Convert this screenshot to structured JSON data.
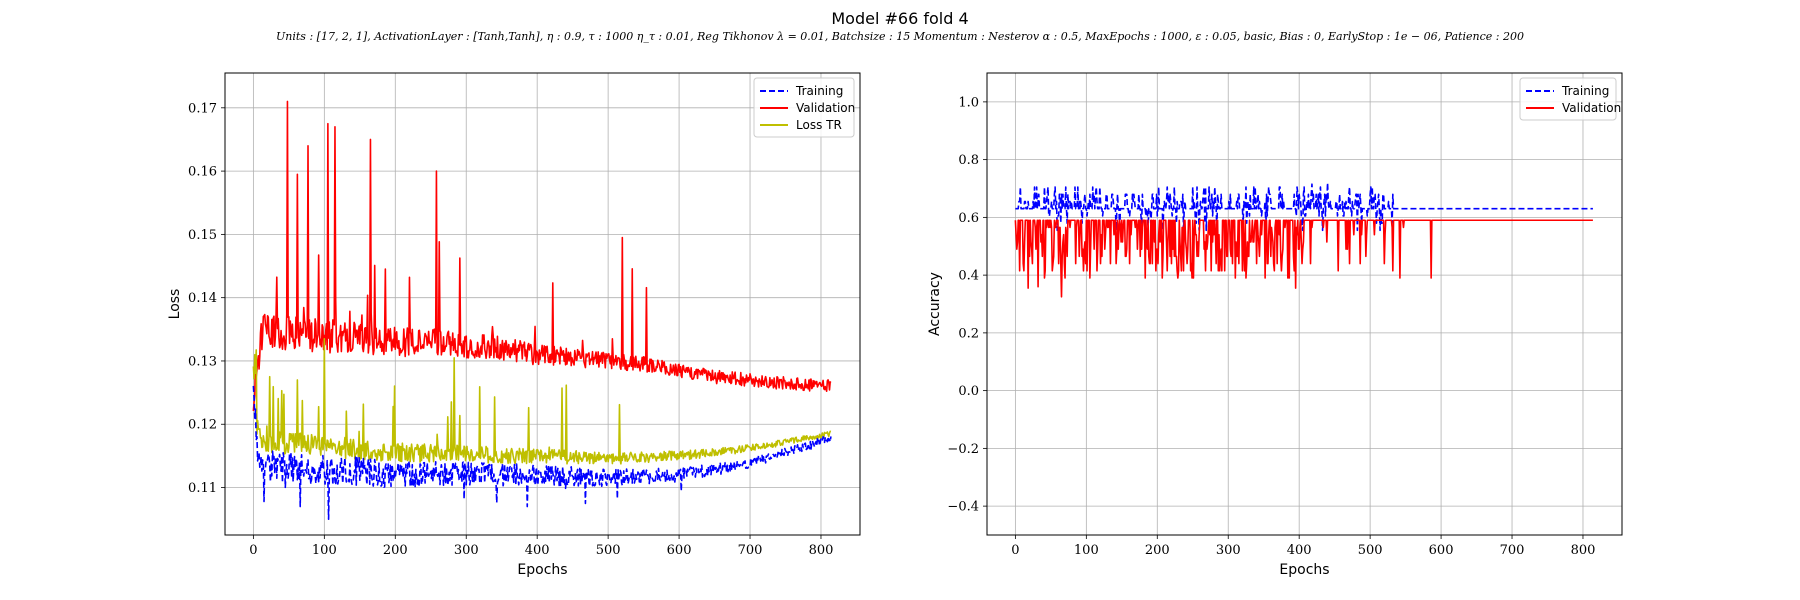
{
  "figure": {
    "title": "Model #66 fold 4",
    "subtitle": "Units : [17, 2, 1], ActivationLayer : [Tanh,Tanh], η : 0.9, τ : 1000 η_τ : 0.01, Reg Tikhonov λ = 0.01, Batchsize : 15 Momentum : Nesterov α : 0.5, MaxEpochs : 1000, ε : 0.05, basic, Bias : 0, EarlyStop : 1e − 06, Patience : 200"
  },
  "colors": {
    "training": "#0000ff",
    "validation": "#ff0000",
    "loss_tr": "#bfbf00",
    "grid": "#b0b0b0"
  },
  "chart_data": [
    {
      "type": "line",
      "xlabel": "Epochs",
      "ylabel": "Loss",
      "xlim": [
        -40,
        855
      ],
      "ylim": [
        0.1025,
        0.1755
      ],
      "xticks": [
        0,
        100,
        200,
        300,
        400,
        500,
        600,
        700,
        800
      ],
      "yticks": [
        0.11,
        0.12,
        0.13,
        0.14,
        0.15,
        0.16,
        0.17
      ],
      "grid": true,
      "legend_position": "top-right",
      "epochs": 815,
      "series": [
        {
          "name": "Training",
          "style": "dashed",
          "color": "#0000ff",
          "x": [
            0,
            5,
            10,
            20,
            50,
            100,
            150,
            200,
            250,
            300,
            350,
            400,
            450,
            500,
            550,
            600,
            650,
            700,
            750,
            815
          ],
          "y": [
            0.124,
            0.117,
            0.114,
            0.1135,
            0.113,
            0.1128,
            0.1125,
            0.112,
            0.1122,
            0.1122,
            0.112,
            0.112,
            0.1118,
            0.1115,
            0.1118,
            0.112,
            0.1128,
            0.114,
            0.1155,
            0.1178
          ]
        },
        {
          "name": "Validation",
          "style": "solid",
          "color": "#ff0000",
          "x": [
            0,
            5,
            10,
            20,
            50,
            100,
            150,
            200,
            250,
            300,
            350,
            400,
            450,
            500,
            550,
            600,
            650,
            700,
            750,
            815
          ],
          "y": [
            0.123,
            0.126,
            0.134,
            0.135,
            0.1345,
            0.134,
            0.1335,
            0.133,
            0.133,
            0.1325,
            0.132,
            0.131,
            0.1305,
            0.13,
            0.1295,
            0.1285,
            0.1275,
            0.127,
            0.1265,
            0.126
          ]
        },
        {
          "name": "Loss TR",
          "style": "solid",
          "color": "#bfbf00",
          "x": [
            0,
            5,
            10,
            20,
            50,
            100,
            150,
            200,
            250,
            300,
            350,
            400,
            450,
            500,
            550,
            600,
            650,
            700,
            750,
            815
          ],
          "y": [
            0.129,
            0.12,
            0.1175,
            0.117,
            0.117,
            0.1165,
            0.116,
            0.1155,
            0.1155,
            0.1155,
            0.115,
            0.115,
            0.1148,
            0.1145,
            0.1148,
            0.115,
            0.1155,
            0.1162,
            0.1172,
            0.1185
          ]
        }
      ]
    },
    {
      "type": "line",
      "xlabel": "Epochs",
      "ylabel": "Accuracy",
      "xlim": [
        -40,
        855
      ],
      "ylim": [
        -0.5,
        1.1
      ],
      "xticks": [
        0,
        100,
        200,
        300,
        400,
        500,
        600,
        700,
        800
      ],
      "yticks": [
        -0.4,
        -0.2,
        0.0,
        0.2,
        0.4,
        0.6,
        0.8,
        1.0
      ],
      "grid": true,
      "legend_position": "top-right",
      "epochs": 815,
      "series": [
        {
          "name": "Training",
          "style": "dashed",
          "color": "#0000ff",
          "x": [
            0,
            100,
            200,
            300,
            400,
            500,
            600,
            700,
            815
          ],
          "y": [
            0.63,
            0.65,
            0.65,
            0.64,
            0.65,
            0.64,
            0.63,
            0.63,
            0.63
          ]
        },
        {
          "name": "Validation",
          "style": "solid",
          "color": "#ff0000",
          "x": [
            0,
            100,
            200,
            300,
            400,
            500,
            600,
            700,
            815
          ],
          "y": [
            0.59,
            0.55,
            0.54,
            0.54,
            0.55,
            0.57,
            0.59,
            0.59,
            0.59
          ]
        }
      ]
    }
  ]
}
